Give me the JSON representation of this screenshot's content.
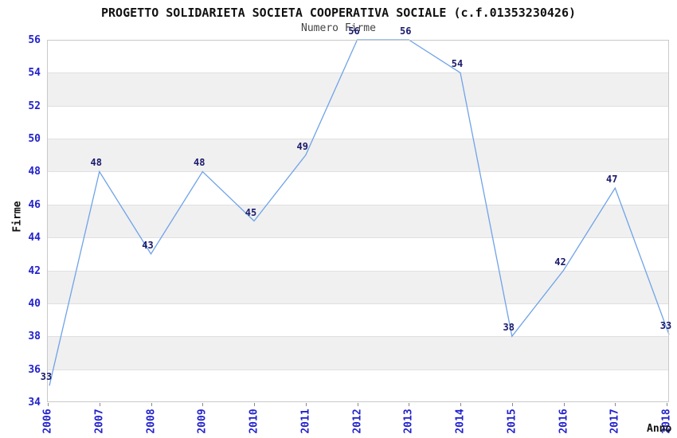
{
  "chart_data": {
    "type": "line",
    "title": "PROGETTO SOLIDARIETA SOCIETA COOPERATIVA SOCIALE (c.f.01353230426)",
    "subtitle": "Numero Firme",
    "xlabel": "Anno",
    "ylabel": "Firme",
    "categories": [
      "2006",
      "2007",
      "2008",
      "2009",
      "2010",
      "2011",
      "2012",
      "2013",
      "2014",
      "2015",
      "2016",
      "2017",
      "2018"
    ],
    "values": [
      33,
      48,
      43,
      48,
      45,
      49,
      56,
      56,
      54,
      38,
      42,
      47,
      33
    ],
    "ylim": [
      34,
      56
    ],
    "ytick_step": 2,
    "grid": "horizontal-bands-alternating",
    "legend": "none",
    "colors": {
      "line": "#6fa3e8",
      "axis_tick_labels": "#2222cc",
      "point_labels": "#1a1a6e",
      "band_gray": "#f0f0f0",
      "gridline": "#e0e0e0",
      "plot_border": "#c9c9c9",
      "title_text": "#111111",
      "subtitle_text": "#444444"
    },
    "render_artifact_note": "first and last points (value 33, below y-min 34) are drawn clipped at the plot edges at approx y-values 35 and 38",
    "plotted_endpoint_values": {
      "first": 35.0,
      "last": 38.1
    }
  }
}
